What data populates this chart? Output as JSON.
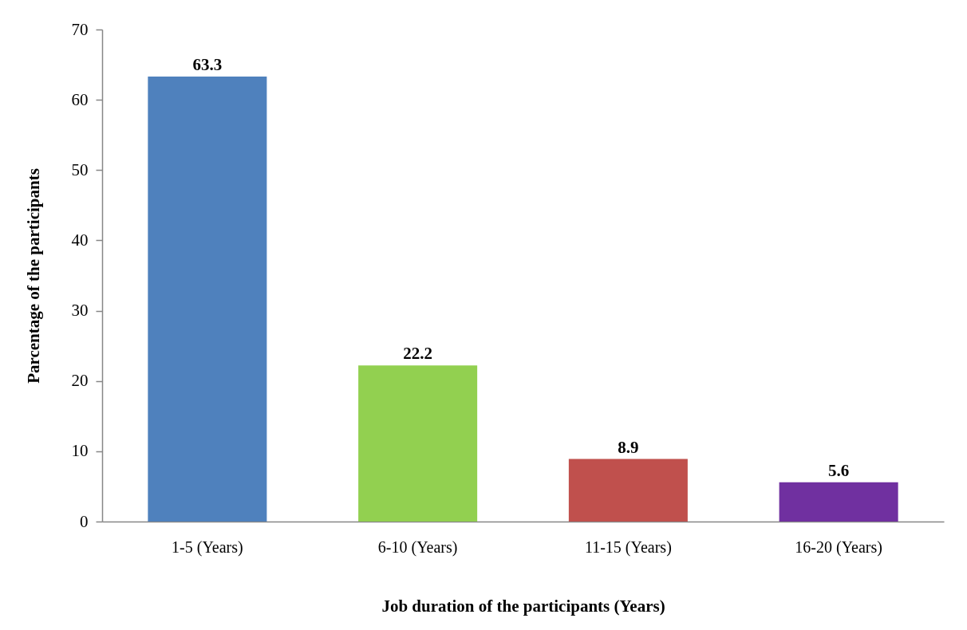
{
  "chart_data": {
    "type": "bar",
    "xlabel": "Job duration of the participants (Years)",
    "ylabel": "Parcentage of the participants",
    "categories": [
      "1-5 (Years)",
      "6-10 (Years)",
      "11-15 (Years)",
      "16-20 (Years)"
    ],
    "values": [
      63.3,
      22.2,
      8.9,
      5.6
    ],
    "colors": [
      "#4f81bd",
      "#92d050",
      "#c0504d",
      "#7030a0"
    ],
    "ylim": [
      0,
      70
    ],
    "yticks": [
      0,
      10,
      20,
      30,
      40,
      50,
      60,
      70
    ],
    "data_labels": true,
    "grid": false
  }
}
